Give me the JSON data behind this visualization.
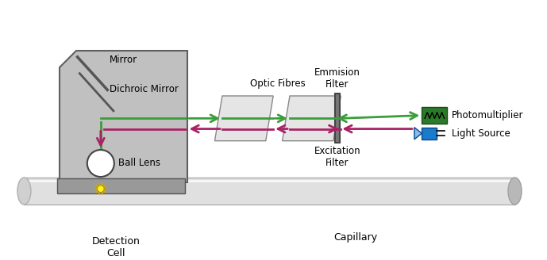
{
  "bg_color": "#ffffff",
  "green_color": "#3a9e3a",
  "pink_color": "#aa2266",
  "gray_box_color": "#c0c0c0",
  "gray_edge": "#707070",
  "label_mirror": "Mirror",
  "label_dichroic": "Dichroic Mirror",
  "label_ball_lens": "Ball Lens",
  "label_optic_fibres": "Optic Fibres",
  "label_emmision": "Emmision\nFilter",
  "label_excitation": "Excitation\nFilter",
  "label_photomultiplier": "Photomultiplier",
  "label_light_source": "Light Source",
  "label_detection_cell": "Detection\nCell",
  "label_capillary": "Capillary",
  "fontsize": 8.5
}
